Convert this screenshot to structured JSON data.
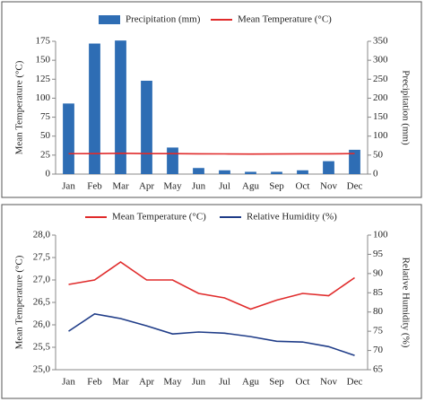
{
  "chart_data": [
    {
      "type": "bar",
      "categories": [
        "Jan",
        "Feb",
        "Mar",
        "Apr",
        "May",
        "Jun",
        "Jul",
        "Agu",
        "Sep",
        "Oct",
        "Nov",
        "Dec"
      ],
      "ylabel": "Mean Temperature (°C)",
      "y2label": "Precipitation (mm)",
      "ylim": [
        0,
        175
      ],
      "yticks": [
        0,
        25,
        50,
        75,
        100,
        125,
        150,
        175
      ],
      "y2lim": [
        0,
        350
      ],
      "y2ticks": [
        0,
        50,
        100,
        150,
        200,
        250,
        300,
        350
      ],
      "series": [
        {
          "name": "Precipitation (mm)",
          "type": "bar",
          "axis": "y2",
          "color": "#2e6db4",
          "values": [
            186,
            344,
            352,
            246,
            70,
            16,
            10,
            6,
            6,
            10,
            34,
            64
          ]
        },
        {
          "name": "Mean Temperature (°C)",
          "type": "line",
          "color": "#e02b2b",
          "values": [
            26.9,
            27.0,
            27.4,
            27.0,
            27.0,
            26.7,
            26.6,
            26.35,
            26.55,
            26.7,
            26.65,
            27.05
          ]
        }
      ]
    },
    {
      "type": "line",
      "categories": [
        "Jan",
        "Feb",
        "Mar",
        "Apr",
        "May",
        "Jun",
        "Jul",
        "Agu",
        "Sep",
        "Oct",
        "Nov",
        "Dec"
      ],
      "ylabel": "Mean Temperature (°C)",
      "y2label": "Relative Humidity (%)",
      "ylim": [
        25,
        28
      ],
      "yticks": [
        {
          "value": 25,
          "label": "25,0"
        },
        {
          "value": 25.5,
          "label": "25,5"
        },
        {
          "value": 26,
          "label": "26,0"
        },
        {
          "value": 26.5,
          "label": "26,5"
        },
        {
          "value": 27,
          "label": "27,0"
        },
        {
          "value": 27.5,
          "label": "27,5"
        },
        {
          "value": 28,
          "label": "28,0"
        }
      ],
      "y2lim": [
        65,
        100
      ],
      "y2ticks": [
        65,
        70,
        75,
        80,
        85,
        90,
        95,
        100
      ],
      "series": [
        {
          "name": "Mean Temperature (°C)",
          "type": "line",
          "color": "#e02b2b",
          "values": [
            26.9,
            27.0,
            27.4,
            27.0,
            27.0,
            26.7,
            26.6,
            26.35,
            26.55,
            26.7,
            26.65,
            27.05
          ]
        },
        {
          "name": "Relative Humidity (%)",
          "type": "line",
          "axis": "y2",
          "color": "#1f3c88",
          "values": [
            75,
            79.5,
            78.3,
            76.4,
            74.3,
            74.8,
            74.5,
            73.6,
            72.4,
            72.2,
            71,
            68.7
          ]
        }
      ]
    }
  ]
}
